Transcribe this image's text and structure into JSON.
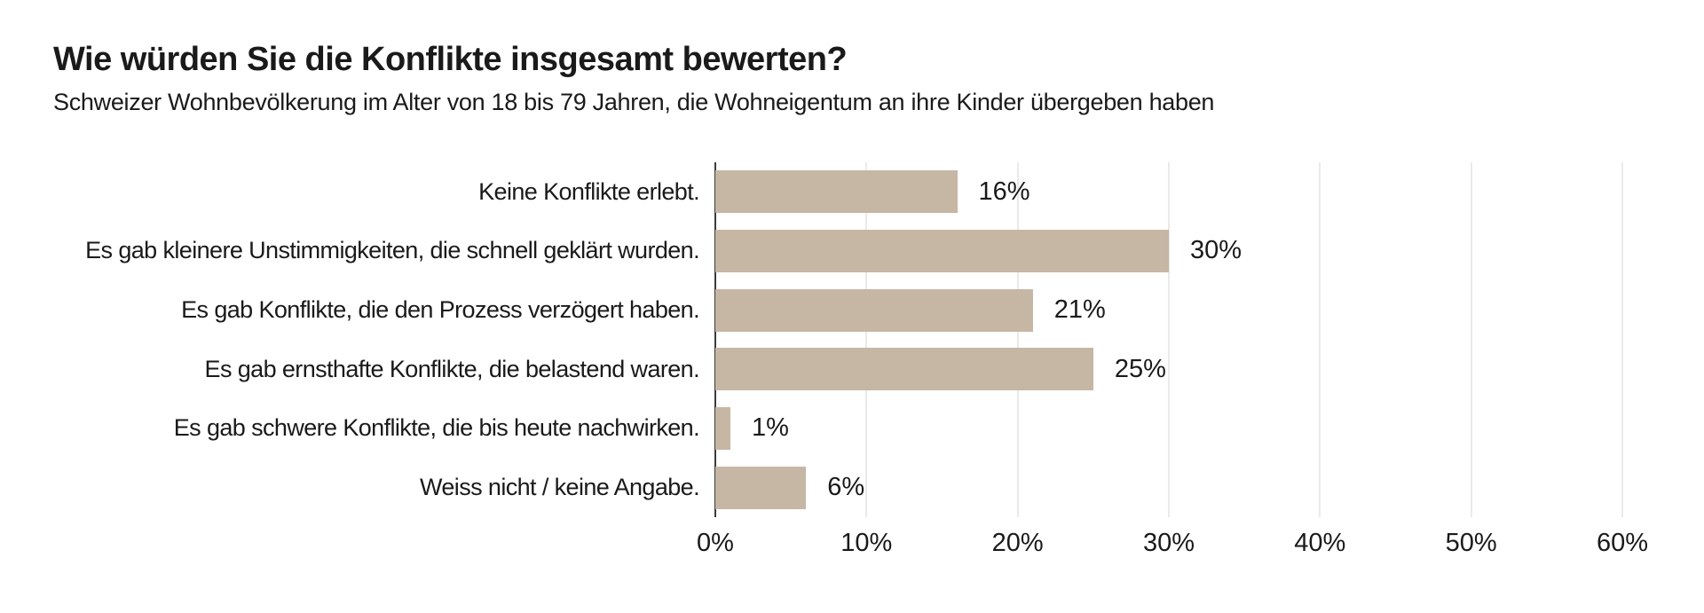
{
  "chart_data": {
    "type": "bar",
    "orientation": "horizontal",
    "title": "Wie würden Sie die Konflikte insgesamt bewerten?",
    "subtitle": "Schweizer Wohnbevölkerung im Alter von 18 bis 79 Jahren, die Wohneigentum an ihre Kinder übergeben haben",
    "categories": [
      "Keine Konflikte erlebt.",
      "Es gab kleinere Unstimmigkeiten, die schnell geklärt wurden.",
      "Es gab Konflikte, die den Prozess verzögert haben.",
      "Es gab ernsthafte Konflikte, die belastend waren.",
      "Es gab schwere Konflikte, die bis heute nachwirken.",
      "Weiss nicht / keine Angabe."
    ],
    "values": [
      16,
      30,
      21,
      25,
      1,
      6
    ],
    "value_labels": [
      "16%",
      "30%",
      "21%",
      "25%",
      "1%",
      "6%"
    ],
    "xlabel": "",
    "ylabel": "",
    "xlim": [
      0,
      60
    ],
    "x_ticks": [
      "0%",
      "10%",
      "20%",
      "30%",
      "40%",
      "50%",
      "60%"
    ],
    "x_tick_values": [
      0,
      10,
      20,
      30,
      40,
      50,
      60
    ],
    "grid": true,
    "legend": false,
    "colors": {
      "bar": "#C6B6A4",
      "gridline": "#D4D4D1",
      "axis_line": "#3A3A38",
      "text": "#1A1A1A",
      "background": "#FFFFFF"
    }
  }
}
